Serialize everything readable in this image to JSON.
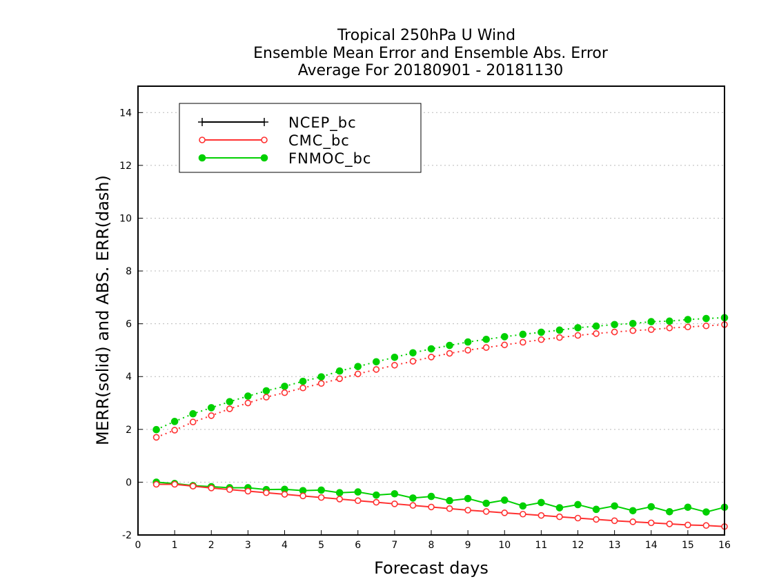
{
  "chart_data": {
    "type": "line",
    "title_lines": [
      "Tropical 250hPa U Wind",
      "Ensemble Mean Error and Ensemble Abs. Error",
      "Average For 20180901 - 20181130"
    ],
    "xlabel": "Forecast days",
    "ylabel": "MERR(solid) and ABS. ERR(dash)",
    "xlim": [
      0,
      16
    ],
    "ylim": [
      -2,
      15
    ],
    "x_ticks": [
      0,
      1,
      2,
      3,
      4,
      5,
      6,
      7,
      8,
      9,
      10,
      11,
      12,
      13,
      14,
      15,
      16
    ],
    "y_ticks": [
      -2,
      0,
      2,
      4,
      6,
      8,
      10,
      12,
      14
    ],
    "grid": "horizontal dotted",
    "legend_position": "top-left",
    "x": [
      0.5,
      1.0,
      1.5,
      2.0,
      2.5,
      3.0,
      3.5,
      4.0,
      4.5,
      5.0,
      5.5,
      6.0,
      6.5,
      7.0,
      7.5,
      8.0,
      8.5,
      9.0,
      9.5,
      10.0,
      10.5,
      11.0,
      11.5,
      12.0,
      12.5,
      13.0,
      13.5,
      14.0,
      14.5,
      15.0,
      15.5,
      16.0
    ],
    "series": [
      {
        "name": "NCEP_bc",
        "color": "#000000",
        "marker": "plus",
        "mean_error": [],
        "abs_error": []
      },
      {
        "name": "CMC_bc",
        "color": "#ff3030",
        "marker": "open-circle",
        "mean_error": [
          -0.08,
          -0.08,
          -0.15,
          -0.22,
          -0.28,
          -0.34,
          -0.4,
          -0.46,
          -0.52,
          -0.58,
          -0.64,
          -0.7,
          -0.76,
          -0.82,
          -0.88,
          -0.94,
          -1.0,
          -1.06,
          -1.11,
          -1.16,
          -1.21,
          -1.26,
          -1.31,
          -1.36,
          -1.41,
          -1.46,
          -1.5,
          -1.54,
          -1.58,
          -1.62,
          -1.64,
          -1.68
        ],
        "abs_error": [
          1.7,
          1.97,
          2.28,
          2.52,
          2.78,
          3.0,
          3.22,
          3.39,
          3.57,
          3.74,
          3.92,
          4.1,
          4.27,
          4.43,
          4.58,
          4.74,
          4.88,
          5.0,
          5.1,
          5.2,
          5.3,
          5.4,
          5.48,
          5.56,
          5.63,
          5.69,
          5.74,
          5.78,
          5.84,
          5.88,
          5.92,
          5.97
        ]
      },
      {
        "name": "FNMOC_bc",
        "color": "#00d000",
        "marker": "filled-circle",
        "mean_error": [
          0.0,
          -0.05,
          -0.13,
          -0.17,
          -0.21,
          -0.21,
          -0.28,
          -0.27,
          -0.32,
          -0.3,
          -0.4,
          -0.37,
          -0.49,
          -0.44,
          -0.6,
          -0.54,
          -0.7,
          -0.62,
          -0.8,
          -0.68,
          -0.9,
          -0.77,
          -0.97,
          -0.85,
          -1.03,
          -0.9,
          -1.08,
          -0.93,
          -1.12,
          -0.95,
          -1.13,
          -0.95
        ],
        "abs_error": [
          1.99,
          2.3,
          2.59,
          2.82,
          3.05,
          3.26,
          3.46,
          3.63,
          3.82,
          3.99,
          4.21,
          4.38,
          4.56,
          4.73,
          4.9,
          5.05,
          5.18,
          5.31,
          5.41,
          5.51,
          5.6,
          5.68,
          5.76,
          5.85,
          5.91,
          5.97,
          6.01,
          6.08,
          6.1,
          6.16,
          6.2,
          6.23
        ]
      }
    ]
  }
}
